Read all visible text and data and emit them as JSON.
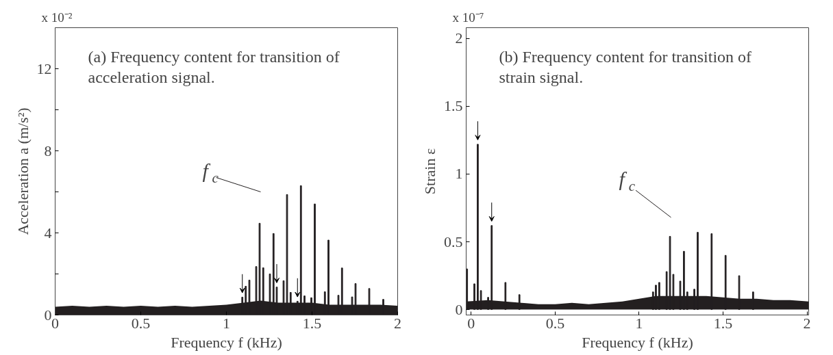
{
  "chart_data": [
    {
      "type": "bar",
      "title": "(a) Frequency content for transition of acceleration signal.",
      "xlabel": "Frequency f (kHz)",
      "ylabel": "Acceleration a (m/s²)",
      "annotations": [
        "x 10⁻²",
        "f$_{c}$"
      ],
      "xlim": [
        0,
        2
      ],
      "ylim": [
        0,
        14
      ],
      "xticks": [
        0,
        0.5,
        1,
        1.5,
        2
      ],
      "yticks": [
        0,
        {
          "value": 2,
          "label": null
        },
        4,
        {
          "value": 6,
          "label": null
        },
        8,
        {
          "value": 10,
          "label": null
        },
        12
      ],
      "grid": false,
      "series": [
        {
          "type": "area",
          "color": "#231f20",
          "x": [
            0,
            0.1,
            0.2,
            0.3,
            0.4,
            0.5,
            0.6,
            0.7,
            0.8,
            0.9,
            1.0,
            1.1,
            1.2,
            1.3,
            1.4,
            1.5,
            1.6,
            1.7,
            1.8,
            1.9,
            2.0
          ],
          "values": [
            0.4,
            0.45,
            0.4,
            0.45,
            0.4,
            0.45,
            0.4,
            0.45,
            0.4,
            0.45,
            0.5,
            0.6,
            0.7,
            0.6,
            0.6,
            0.6,
            0.5,
            0.5,
            0.5,
            0.5,
            0.45
          ]
        },
        {
          "color": "#231f20",
          "x": [
            1.093,
            1.113,
            1.134,
            1.174,
            1.194,
            1.215,
            1.254,
            1.275,
            1.294,
            1.334,
            1.354,
            1.375,
            1.415,
            1.435,
            1.456,
            1.496,
            1.516,
            1.575,
            1.596,
            1.654,
            1.675,
            1.734,
            1.754,
            1.834,
            1.916
          ],
          "values": [
            0.87,
            1.4,
            1.7,
            2.36,
            4.47,
            2.3,
            2.0,
            3.97,
            1.36,
            1.67,
            5.87,
            1.1,
            0.67,
            6.3,
            0.93,
            0.84,
            5.41,
            1.13,
            3.65,
            0.96,
            2.29,
            0.88,
            1.53,
            1.29,
            0.76
          ]
        }
      ]
    },
    {
      "type": "bar",
      "title": "(b) Frequency content for transition of strain signal.",
      "xlabel": "Frequency f (kHz)",
      "ylabel": "Strain ε",
      "annotations": [
        "x 10⁻⁷",
        "f$_{c}$"
      ],
      "xlim": [
        -0.03,
        2.01
      ],
      "ylim": [
        -0.04,
        2.08
      ],
      "xticks": [
        0,
        0.5,
        1,
        1.5,
        2
      ],
      "yticks": [
        0,
        0.5,
        1,
        1.5,
        2
      ],
      "grid": false,
      "series": [
        {
          "type": "area",
          "color": "#231f20",
          "x": [
            -0.03,
            0.1,
            0.2,
            0.3,
            0.4,
            0.5,
            0.6,
            0.7,
            0.8,
            0.9,
            1.0,
            1.1,
            1.2,
            1.3,
            1.4,
            1.5,
            1.6,
            1.7,
            1.8,
            1.9,
            2.01
          ],
          "values": [
            0.06,
            0.07,
            0.06,
            0.05,
            0.04,
            0.04,
            0.05,
            0.04,
            0.05,
            0.06,
            0.08,
            0.1,
            0.1,
            0.1,
            0.1,
            0.09,
            0.08,
            0.08,
            0.07,
            0.07,
            0.06
          ]
        },
        {
          "color": "#231f20",
          "x": [
            -0.025,
            0.019,
            0.039,
            0.058,
            0.101,
            0.122,
            0.204,
            0.287,
            1.083,
            1.1,
            1.12,
            1.164,
            1.184,
            1.204,
            1.245,
            1.267,
            1.287,
            1.329,
            1.349,
            1.432,
            1.515,
            1.596,
            1.679
          ],
          "values": [
            0.3,
            0.19,
            1.22,
            0.14,
            0.09,
            0.62,
            0.2,
            0.11,
            0.13,
            0.18,
            0.2,
            0.28,
            0.54,
            0.26,
            0.21,
            0.43,
            0.13,
            0.15,
            0.57,
            0.56,
            0.4,
            0.25,
            0.13
          ]
        }
      ]
    }
  ]
}
